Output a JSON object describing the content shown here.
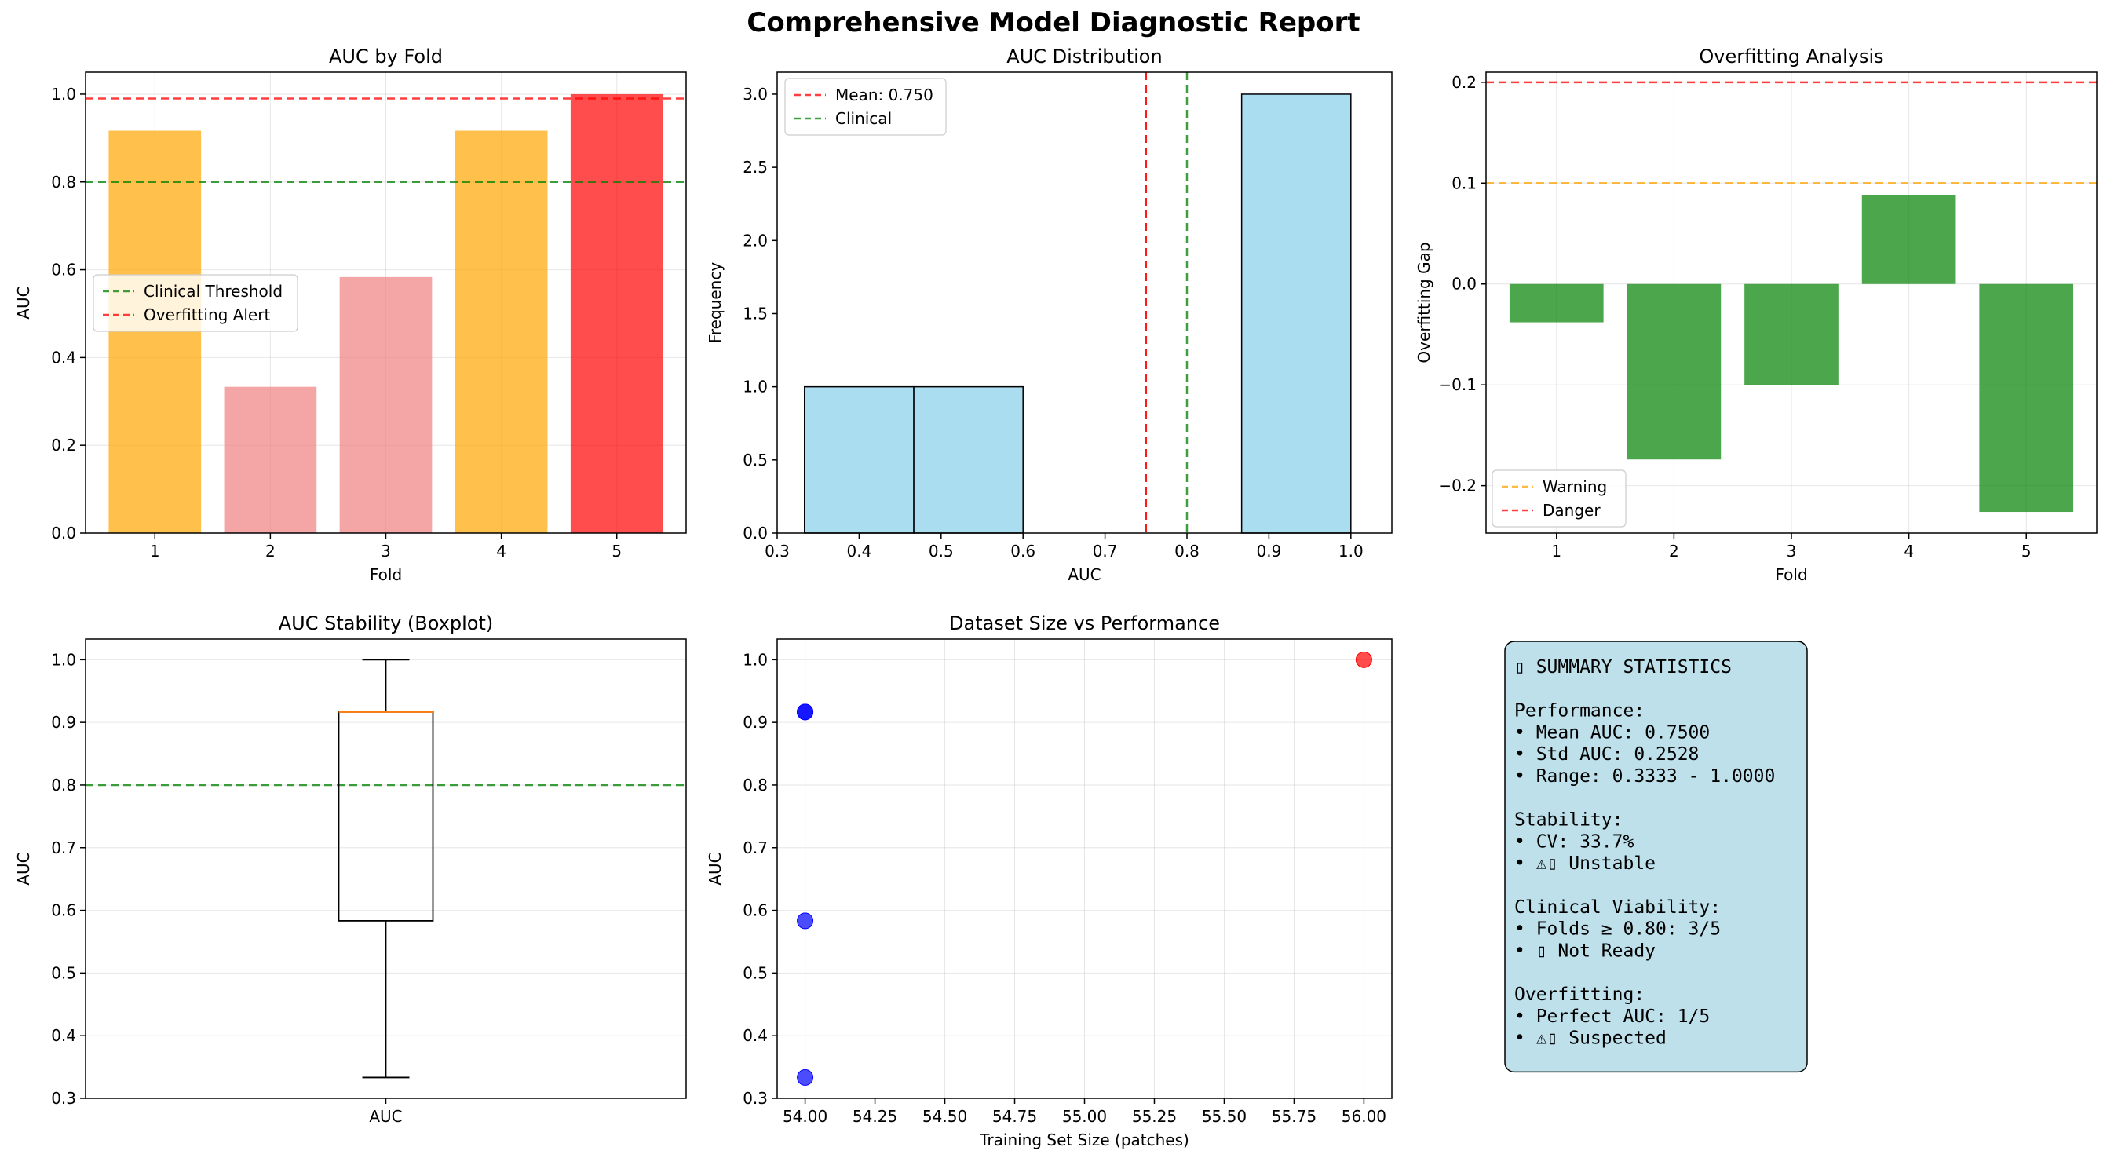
{
  "suptitle": "Comprehensive Model Diagnostic Report",
  "colors": {
    "orange": "#FFA500",
    "pink": "#F08080",
    "red": "#FF0000",
    "green": "#008000",
    "skyblue": "#87CEEB",
    "blue": "#0000FF",
    "summary_bg": "#ADD8E6",
    "median": "#FF7F0E"
  },
  "chart_data": [
    {
      "id": "auc_by_fold",
      "type": "bar",
      "title": "AUC by Fold",
      "xlabel": "Fold",
      "ylabel": "AUC",
      "categories": [
        "1",
        "2",
        "3",
        "4",
        "5"
      ],
      "values": [
        0.9167,
        0.3333,
        0.5833,
        0.9167,
        1.0
      ],
      "bar_colors": [
        "orange",
        "pink",
        "pink",
        "orange",
        "red"
      ],
      "ylim": [
        0,
        1.05
      ],
      "yticks": [
        0.0,
        0.2,
        0.4,
        0.6,
        0.8,
        1.0
      ],
      "hlines": [
        {
          "y": 0.8,
          "color": "green",
          "label": "Clinical Threshold"
        },
        {
          "y": 0.99,
          "color": "red",
          "label": "Overfitting Alert"
        }
      ],
      "grid": true,
      "legend_loc": "center-left"
    },
    {
      "id": "auc_distribution",
      "type": "histogram",
      "title": "AUC Distribution",
      "xlabel": "AUC",
      "ylabel": "Frequency",
      "bins": [
        {
          "x0": 0.3333,
          "x1": 0.4667,
          "count": 1
        },
        {
          "x0": 0.4667,
          "x1": 0.6,
          "count": 1
        },
        {
          "x0": 0.6,
          "x1": 0.7333,
          "count": 0
        },
        {
          "x0": 0.7333,
          "x1": 0.8667,
          "count": 0
        },
        {
          "x0": 0.8667,
          "x1": 1.0,
          "count": 3
        }
      ],
      "xlim": [
        0.3,
        1.05
      ],
      "xticks": [
        0.3,
        0.4,
        0.5,
        0.6,
        0.7,
        0.8,
        0.9,
        1.0
      ],
      "ylim": [
        0,
        3.15
      ],
      "yticks": [
        0.0,
        0.5,
        1.0,
        1.5,
        2.0,
        2.5,
        3.0
      ],
      "vlines": [
        {
          "x": 0.75,
          "color": "red",
          "label": "Mean: 0.750"
        },
        {
          "x": 0.8,
          "color": "green",
          "label": "Clinical"
        }
      ],
      "grid": false,
      "legend_loc": "top-left"
    },
    {
      "id": "overfitting_analysis",
      "type": "bar",
      "title": "Overfitting Analysis",
      "xlabel": "Fold",
      "ylabel": "Overfitting Gap",
      "categories": [
        "1",
        "2",
        "3",
        "4",
        "5"
      ],
      "values": [
        -0.038,
        -0.174,
        -0.1,
        0.088,
        -0.226
      ],
      "bar_colors": [
        "green",
        "green",
        "green",
        "green",
        "green"
      ],
      "ylim": [
        -0.247,
        0.21
      ],
      "yticks": [
        -0.2,
        -0.1,
        0.0,
        0.1,
        0.2
      ],
      "hlines": [
        {
          "y": 0.1,
          "color": "orange",
          "label": "Warning"
        },
        {
          "y": 0.2,
          "color": "red",
          "label": "Danger"
        }
      ],
      "grid": true,
      "legend_loc": "bottom-left"
    },
    {
      "id": "auc_stability",
      "type": "boxplot",
      "title": "AUC Stability (Boxplot)",
      "xlabel": "",
      "ylabel": "AUC",
      "category": "AUC",
      "values": [
        0.9167,
        0.3333,
        0.5833,
        0.9167,
        1.0
      ],
      "whisker_low": 0.3333,
      "q1": 0.5833,
      "median": 0.9167,
      "q3": 0.9167,
      "whisker_high": 1.0,
      "ylim": [
        0.3,
        1.033
      ],
      "yticks": [
        0.3,
        0.4,
        0.5,
        0.6,
        0.7,
        0.8,
        0.9,
        1.0
      ],
      "hlines": [
        {
          "y": 0.8,
          "color": "green",
          "label": ""
        }
      ],
      "grid": true
    },
    {
      "id": "dataset_size_vs_performance",
      "type": "scatter",
      "title": "Dataset Size vs Performance",
      "xlabel": "Training Set Size (patches)",
      "ylabel": "AUC",
      "points": [
        {
          "x": 54,
          "y": 0.9167,
          "color": "blue"
        },
        {
          "x": 54,
          "y": 0.3333,
          "color": "blue"
        },
        {
          "x": 54,
          "y": 0.5833,
          "color": "blue"
        },
        {
          "x": 54,
          "y": 0.9167,
          "color": "blue"
        },
        {
          "x": 56,
          "y": 1.0,
          "color": "red"
        }
      ],
      "xlim": [
        53.9,
        56.1
      ],
      "xticks": [
        54.0,
        54.25,
        54.5,
        54.75,
        55.0,
        55.25,
        55.5,
        55.75,
        56.0
      ],
      "xtick_labels": [
        "54.00",
        "54.25",
        "54.50",
        "54.75",
        "55.00",
        "55.25",
        "55.50",
        "55.75",
        "56.00"
      ],
      "ylim": [
        0.3,
        1.033
      ],
      "yticks": [
        0.3,
        0.4,
        0.5,
        0.6,
        0.7,
        0.8,
        0.9,
        1.0
      ],
      "grid": true
    }
  ],
  "summary": {
    "lines": [
      "▯ SUMMARY STATISTICS",
      "",
      "Performance:",
      "• Mean AUC: 0.7500",
      "• Std AUC: 0.2528",
      "• Range: 0.3333 - 1.0000",
      "",
      "Stability:",
      "• CV: 33.7%",
      "• ⚠▯ Unstable",
      "",
      "Clinical Viability:",
      "• Folds ≥ 0.80: 3/5",
      "• ▯ Not Ready",
      "",
      "Overfitting:",
      "• Perfect AUC: 1/5",
      "• ⚠▯ Suspected"
    ]
  }
}
